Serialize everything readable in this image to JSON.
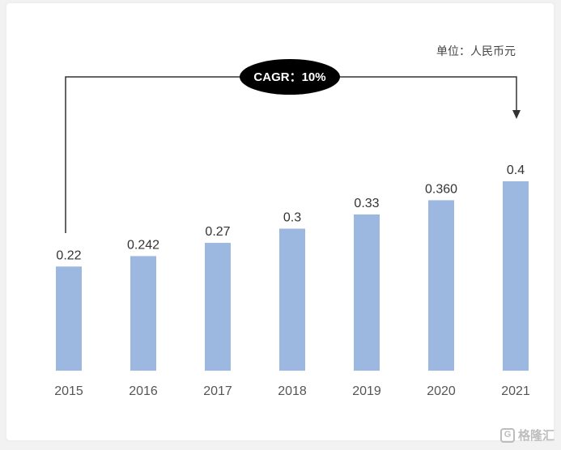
{
  "unit_label": "单位：人民币元",
  "annotation": {
    "cagr_text": "CAGR：10%"
  },
  "watermark": {
    "text": "格隆汇",
    "icon": "G"
  },
  "colors": {
    "bar": "#9cb8e0",
    "text": "#333333",
    "tick": "#555555",
    "bracket": "#333333",
    "ellipse": "#000000"
  },
  "chart_data": {
    "type": "bar",
    "categories": [
      "2015",
      "2016",
      "2017",
      "2018",
      "2019",
      "2020",
      "2021"
    ],
    "values": [
      0.22,
      0.242,
      0.27,
      0.3,
      0.33,
      0.36,
      0.4
    ],
    "data_labels": [
      "0.22",
      "0.242",
      "0.27",
      "0.3",
      "0.33",
      "0.360",
      "0.4"
    ],
    "title": "",
    "xlabel": "",
    "ylabel": "",
    "ylim": [
      0,
      0.4
    ],
    "grid": false,
    "legend": "none"
  }
}
